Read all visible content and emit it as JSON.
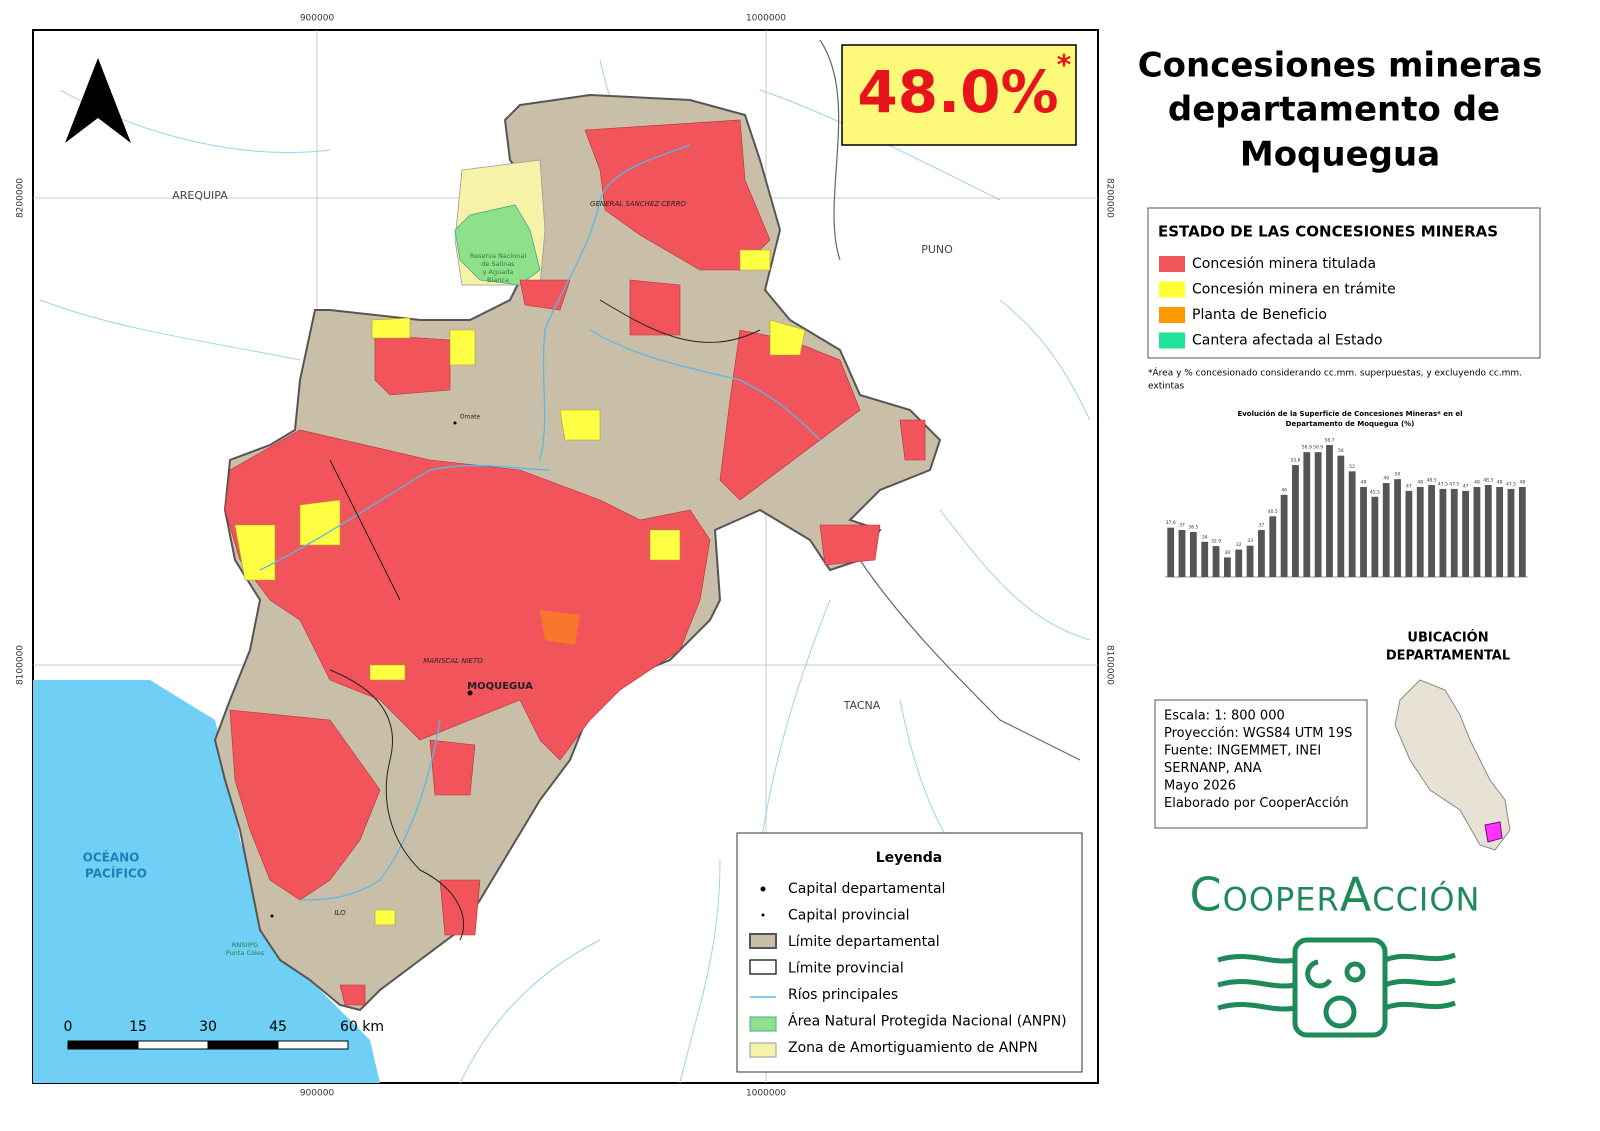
{
  "map": {
    "x_ticks": [
      900000,
      1000000
    ],
    "y_ticks": [
      8200000,
      8100000
    ],
    "places": {
      "arequipa": "AREQUIPA",
      "puno": "PUNO",
      "tacna": "TACNA",
      "ocean_1": "OCÉANO",
      "ocean_2": "PACÍFICO",
      "moquegua": "MOQUEGUA",
      "sanchez_cerro": "GENERAL SANCHEZ CERRO",
      "mariscal_nieto": "MARISCAL NIETO",
      "ilo": "ILO",
      "omate": "Omate",
      "reserve_1": "Reserva Nacional",
      "reserve_2": "de Salinas",
      "reserve_3": "y Aguada",
      "reserve_4": "Blanca",
      "punta_coles_1": "RNSIIPG",
      "punta_coles_2": "Punta Coles"
    },
    "badge": {
      "value": "48.0%",
      "mark": "*"
    },
    "legend": {
      "title": "Leyenda",
      "items": [
        "Capital departamental",
        "Capital provincial",
        "Límite departamental",
        "Límite provincial",
        "Ríos principales",
        "Área Natural Protegida Nacional (ANPN)",
        "Zona de Amortiguamiento de ANPN"
      ]
    },
    "scale_bar": {
      "ticks": [
        0,
        15,
        30,
        45,
        {
          "value": 60,
          "label": "60 km"
        }
      ]
    }
  },
  "panel": {
    "title": [
      "Concesiones mineras",
      "departamento de",
      "Moquegua"
    ],
    "status_legend": {
      "title": "ESTADO DE LAS CONCESIONES MINERAS",
      "items": [
        {
          "label": "Concesión minera titulada",
          "color": "#f2545b"
        },
        {
          "label": "Concesión minera en trámite",
          "color": "#ffff33"
        },
        {
          "label": "Planta de Beneficio",
          "color": "#ff9900"
        },
        {
          "label": "Cantera afectada al Estado",
          "color": "#22e39a"
        }
      ]
    },
    "note": [
      "*Área y % concesionado considerando cc.mm. superpuestas, y excluyendo cc.mm.",
      "extintas"
    ],
    "location_title": [
      "UBICACIÓN",
      "DEPARTAMENTAL"
    ],
    "info": [
      "Escala: 1: 800 000",
      "Proyección: WGS84 UTM 19S",
      "Fuente: INGEMMET, INEI",
      "SERNANP, ANA",
      "Mayo 2026",
      "Elaborado por CooperAcción"
    ],
    "logo": "CooperAcción"
  },
  "chart_data": {
    "type": "bar",
    "title": [
      "Evolución de la Superficie de Concesiones Mineras* en el",
      "Departamento de Moquegua (%)"
    ],
    "color": "#555555",
    "ylim": [
      25,
      60
    ],
    "values": [
      37.6,
      37.0,
      36.5,
      34.0,
      32.9,
      30.0,
      32.0,
      33.0,
      37.0,
      40.5,
      46.0,
      53.6,
      56.9,
      56.9,
      58.7,
      56.0,
      52.0,
      48.0,
      45.5,
      49.0,
      50.0,
      47.0,
      48.0,
      48.5,
      47.5,
      47.5,
      47.0,
      48.0,
      48.5,
      48.0,
      47.5,
      48.0
    ]
  }
}
